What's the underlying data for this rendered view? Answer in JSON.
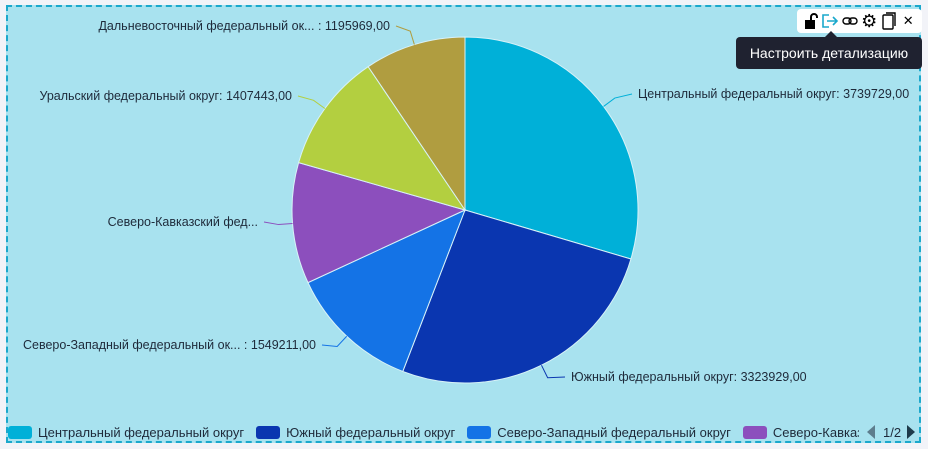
{
  "chart_data": {
    "type": "pie",
    "title": "",
    "start_angle": "top, clockwise",
    "slices": [
      {
        "name": "Центральный федеральный округ",
        "value": 3739729.0,
        "label": "Центральный федеральный округ: 3739729,00",
        "color": "#00b0d8"
      },
      {
        "name": "Южный федеральный округ",
        "value": 3323929.0,
        "label": "Южный федеральный округ: 3323929,00",
        "color": "#0a36b0"
      },
      {
        "name": "Северо-Западный федеральный округ",
        "value": 1549211.0,
        "label": "Северо-Западный федеральный ок... : 1549211,00",
        "color": "#1473e6"
      },
      {
        "name": "Северо-Кавказский федеральный округ",
        "value": 1430000,
        "label": "Северо-Кавказский фед...",
        "color": "#8c4fbd"
      },
      {
        "name": "Уральский федеральный округ",
        "value": 1407443.0,
        "label": "Уральский федеральный округ: 1407443,00",
        "color": "#b3cf40"
      },
      {
        "name": "Дальневосточный федеральный округ",
        "value": 1195969.0,
        "label": "Дальневосточный федеральный ок... : 1195969,00",
        "color": "#b09d40"
      }
    ],
    "legend": {
      "placement": "bottom",
      "items": [
        "Центральный федеральный округ",
        "Южный федеральный округ",
        "Северо-Западный федеральный округ",
        "Северо-Кавказский федеральный округ"
      ],
      "page": "1/2"
    }
  },
  "toolbar": {
    "icons": [
      "lock-open-icon",
      "drill-export-icon",
      "link-icon",
      "gear-icon",
      "copy-icon",
      "close-icon"
    ],
    "tooltip": "Настроить детализацию"
  }
}
